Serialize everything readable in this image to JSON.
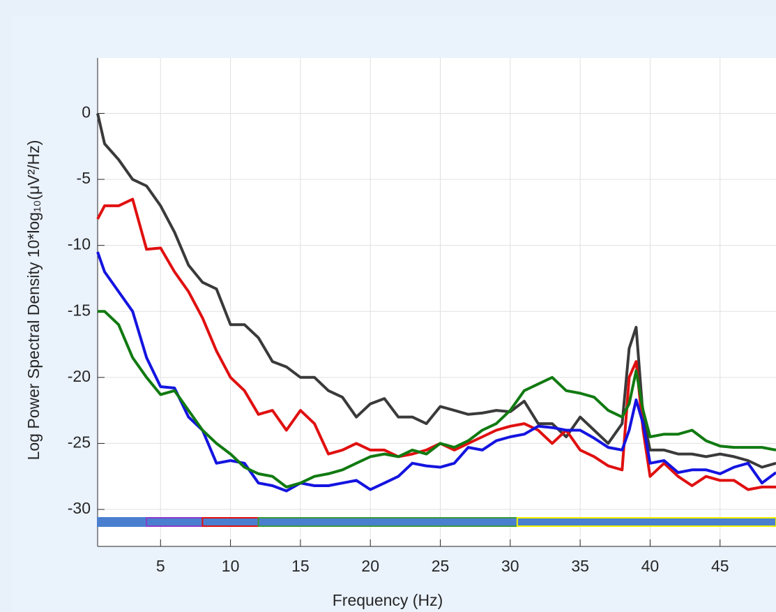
{
  "chart_data": {
    "type": "line",
    "xlabel": "Frequency (Hz)",
    "ylabel": "Log  Power  Spectral  Density  10*log₁₀(μV²/Hz)",
    "x": [
      0.5,
      1,
      2,
      3,
      4,
      5,
      6,
      7,
      8,
      9,
      10,
      11,
      12,
      13,
      14,
      15,
      16,
      17,
      18,
      19,
      20,
      21,
      22,
      23,
      24,
      25,
      26,
      27,
      28,
      29,
      30,
      31,
      32,
      33,
      34,
      35,
      36,
      37,
      38,
      38.5,
      39,
      39.5,
      40,
      41,
      42,
      43,
      44,
      45,
      46,
      47,
      48,
      49
    ],
    "series": [
      {
        "color": "#3a3a3a",
        "values": [
          0,
          -2.3,
          -3.5,
          -5,
          -5.5,
          -7,
          -9,
          -11.5,
          -12.8,
          -13.3,
          -16,
          -16,
          -17,
          -18.8,
          -19.2,
          -20,
          -20,
          -21,
          -21.5,
          -23,
          -22,
          -21.6,
          -23,
          -23,
          -23.5,
          -22.2,
          -22.5,
          -22.8,
          -22.7,
          -22.5,
          -22.6,
          -21.8,
          -23.5,
          -23.5,
          -24.5,
          -23,
          -24,
          -25,
          -23.5,
          -17.8,
          -16.2,
          -23,
          -25.5,
          -25.5,
          -25.8,
          -25.8,
          -26,
          -25.8,
          -26,
          -26.3,
          -26.8,
          -26.5
        ]
      },
      {
        "color": "#e01010",
        "values": [
          -8,
          -7,
          -7,
          -6.5,
          -10.3,
          -10.2,
          -12,
          -13.5,
          -15.5,
          -18,
          -20,
          -21,
          -22.8,
          -22.5,
          -24,
          -22.5,
          -23.5,
          -25.8,
          -25.5,
          -25,
          -25.5,
          -25.5,
          -26,
          -25.8,
          -25.5,
          -25,
          -25.5,
          -25,
          -24.5,
          -24,
          -23.7,
          -23.5,
          -24,
          -25,
          -24,
          -25.5,
          -26,
          -26.7,
          -27,
          -20,
          -18.8,
          -24,
          -27.5,
          -26.5,
          -27.5,
          -28.2,
          -27.5,
          -27.8,
          -27.8,
          -28.5,
          -28.3,
          -28.3
        ]
      },
      {
        "color": "#1414e0",
        "values": [
          -10.5,
          -12,
          -13.5,
          -15,
          -18.5,
          -20.7,
          -20.8,
          -23,
          -24,
          -26.5,
          -26.3,
          -26.5,
          -28,
          -28.2,
          -28.6,
          -28,
          -28.2,
          -28.2,
          -28,
          -27.8,
          -28.5,
          -28,
          -27.5,
          -26.5,
          -26.7,
          -26.8,
          -26.5,
          -25.3,
          -25.5,
          -24.8,
          -24.5,
          -24.3,
          -23.7,
          -23.8,
          -24,
          -24,
          -24.6,
          -25.3,
          -25.5,
          -24,
          -21.7,
          -23.5,
          -26.5,
          -26.3,
          -27.2,
          -27,
          -27,
          -27.3,
          -26.8,
          -26.5,
          -28,
          -27.2
        ]
      },
      {
        "color": "#117a11",
        "values": [
          -15,
          -15,
          -16,
          -18.5,
          -20,
          -21.3,
          -21,
          -22.5,
          -24,
          -25,
          -25.8,
          -26.8,
          -27.3,
          -27.5,
          -28.3,
          -28,
          -27.5,
          -27.3,
          -27,
          -26.5,
          -26,
          -25.8,
          -26,
          -25.5,
          -25.8,
          -25,
          -25.3,
          -24.8,
          -24,
          -23.5,
          -22.5,
          -21,
          -20.5,
          -20,
          -21,
          -21.2,
          -21.5,
          -22.5,
          -23,
          -22,
          -19.5,
          -22.5,
          -24.5,
          -24.3,
          -24.3,
          -24,
          -24.8,
          -25.2,
          -25.3,
          -25.3,
          -25.3,
          -25.5
        ]
      }
    ],
    "bands": [
      {
        "from": 0.5,
        "to": 4,
        "edge": "#4a7fd0"
      },
      {
        "from": 4,
        "to": 8,
        "edge": "#8a3cc8"
      },
      {
        "from": 8,
        "to": 12,
        "edge": "#e01010"
      },
      {
        "from": 12,
        "to": 30.5,
        "edge": "#3a9a3a"
      },
      {
        "from": 30.5,
        "to": 49,
        "edge": "#f2f200"
      }
    ],
    "band_fill": "#4a7fd0",
    "xlim": [
      0.5,
      49
    ],
    "ylim": [
      -32.8,
      4.2
    ],
    "xticks": [
      5,
      10,
      15,
      20,
      25,
      30,
      35,
      40,
      45
    ],
    "yticks": [
      -30,
      -25,
      -20,
      -15,
      -10,
      -5,
      0
    ],
    "grid": true
  }
}
